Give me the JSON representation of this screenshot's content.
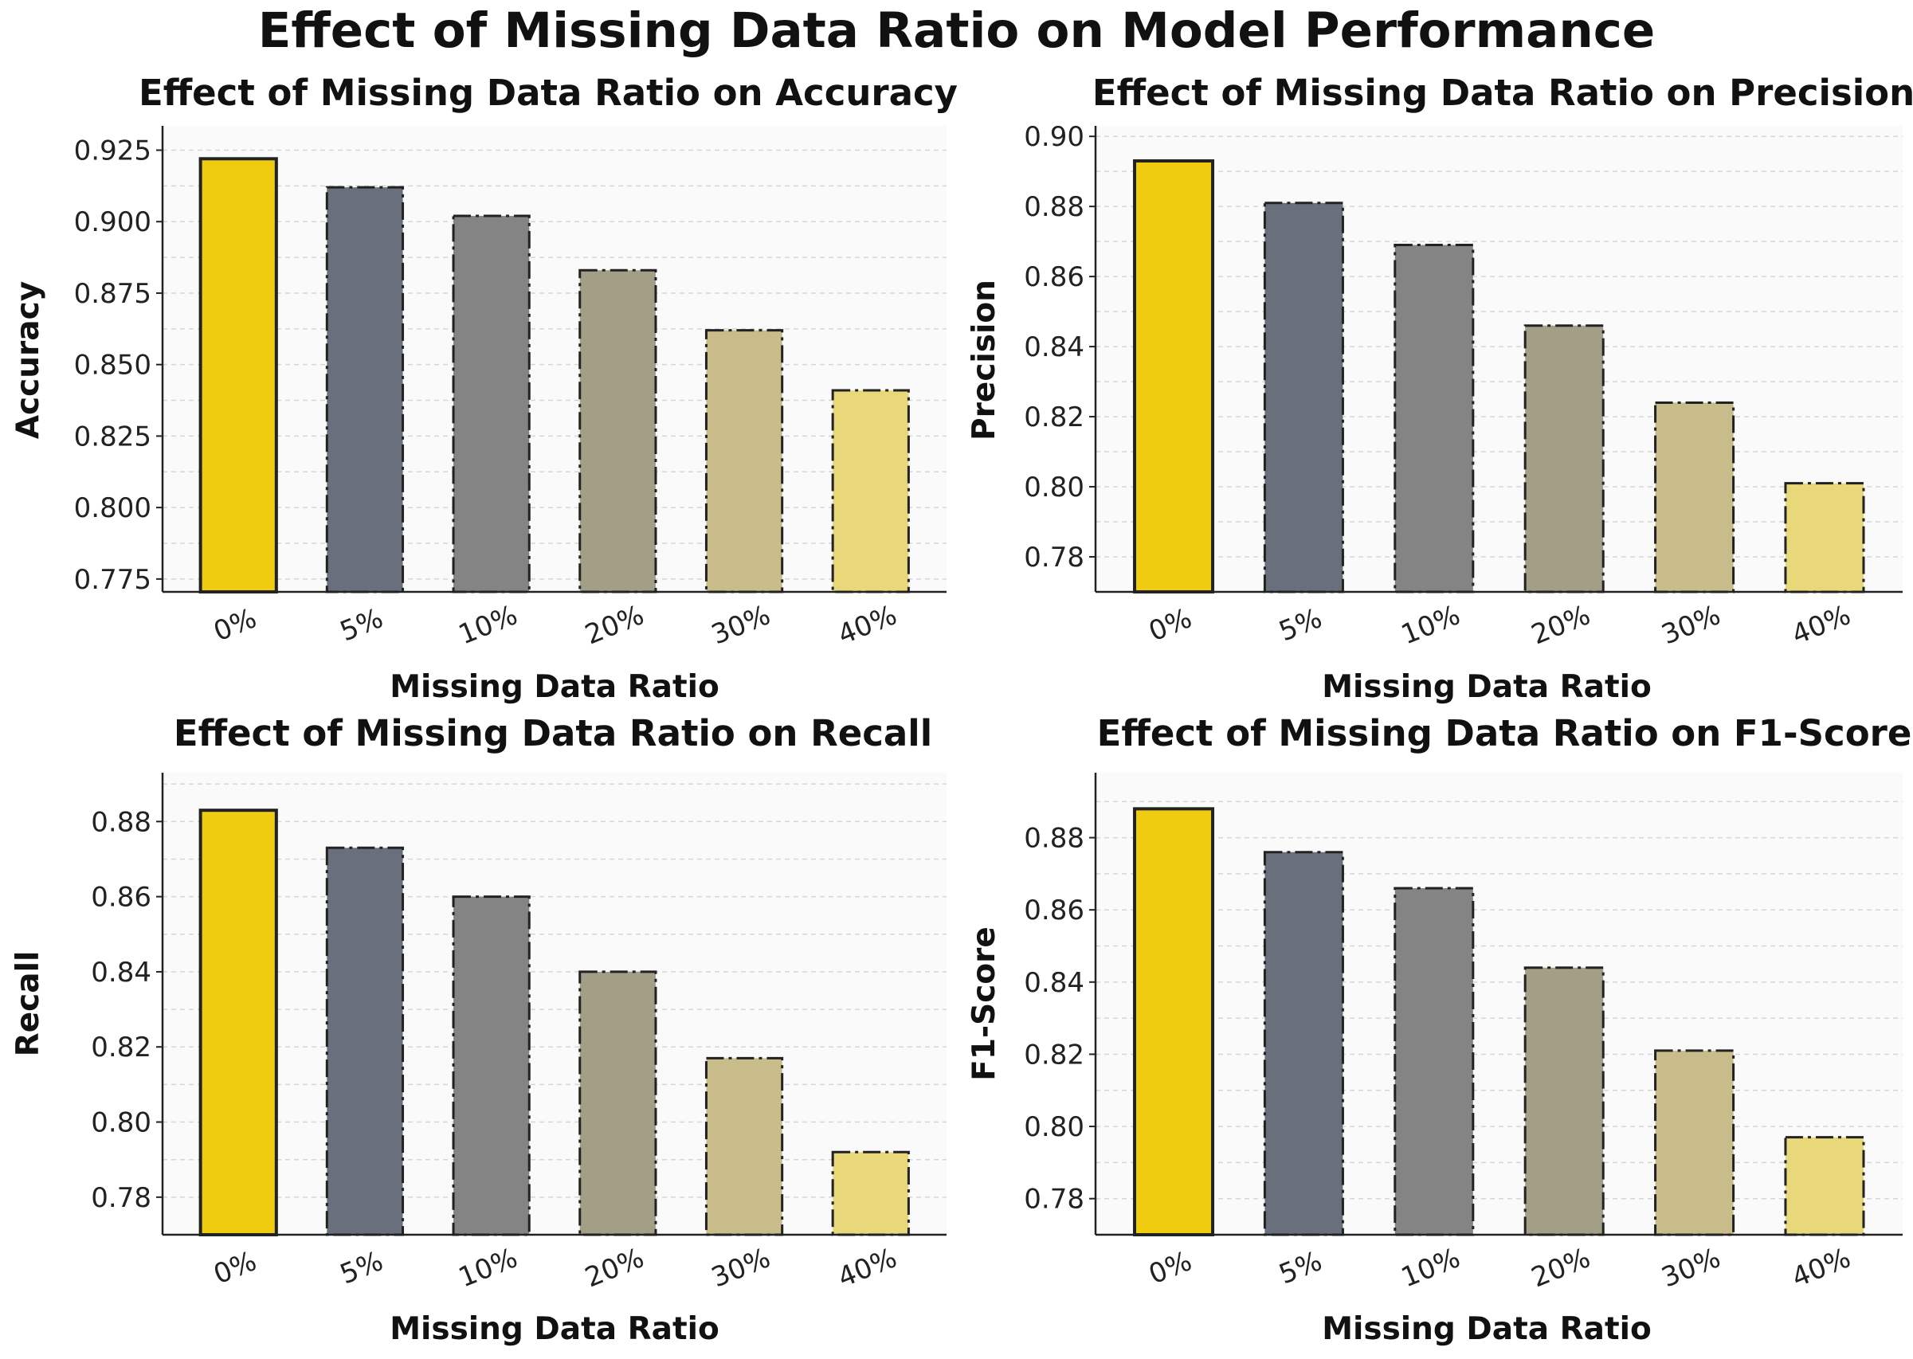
{
  "title": "Effect of Missing Data Ratio on Model Performance",
  "colors": {
    "bars": [
      "#f0cc10",
      "#6a6f7c",
      "#848484",
      "#a39f86",
      "#c8bc8a",
      "#e8d87a"
    ],
    "edge": "#222222",
    "plot_bg": "#fafafa",
    "grid": "#d6d6d6"
  },
  "chart_data": [
    {
      "type": "bar",
      "title": "Effect of Missing Data Ratio on Accuracy",
      "xlabel": "Missing Data Ratio",
      "ylabel": "Accuracy",
      "categories": [
        "0%",
        "5%",
        "10%",
        "20%",
        "30%",
        "40%"
      ],
      "values": [
        0.922,
        0.912,
        0.902,
        0.883,
        0.862,
        0.841
      ],
      "ylim": [
        0.7705,
        0.9335
      ],
      "yticks": [
        0.775,
        0.8,
        0.825,
        0.85,
        0.875,
        0.9,
        0.925
      ],
      "ytick_labels": [
        "0.775",
        "0.800",
        "0.825",
        "0.850",
        "0.875",
        "0.900",
        "0.925"
      ]
    },
    {
      "type": "bar",
      "title": "Effect of Missing Data Ratio on Precision",
      "xlabel": "Missing Data Ratio",
      "ylabel": "Precision",
      "categories": [
        "0%",
        "5%",
        "10%",
        "20%",
        "30%",
        "40%"
      ],
      "values": [
        0.893,
        0.881,
        0.869,
        0.846,
        0.824,
        0.801
      ],
      "ylim": [
        0.77,
        0.903
      ],
      "yticks": [
        0.78,
        0.8,
        0.82,
        0.84,
        0.86,
        0.88,
        0.9
      ],
      "ytick_labels": [
        "0.78",
        "0.80",
        "0.82",
        "0.84",
        "0.86",
        "0.88",
        "0.90"
      ]
    },
    {
      "type": "bar",
      "title": "Effect of Missing Data Ratio on Recall",
      "xlabel": "Missing Data Ratio",
      "ylabel": "Recall",
      "categories": [
        "0%",
        "5%",
        "10%",
        "20%",
        "30%",
        "40%"
      ],
      "values": [
        0.883,
        0.873,
        0.86,
        0.84,
        0.817,
        0.792
      ],
      "ylim": [
        0.77,
        0.893
      ],
      "yticks": [
        0.78,
        0.8,
        0.82,
        0.84,
        0.86,
        0.88
      ],
      "ytick_labels": [
        "0.78",
        "0.80",
        "0.82",
        "0.84",
        "0.86",
        "0.88"
      ]
    },
    {
      "type": "bar",
      "title": "Effect of Missing Data Ratio on F1-Score",
      "xlabel": "Missing Data Ratio",
      "ylabel": "F1-Score",
      "categories": [
        "0%",
        "5%",
        "10%",
        "20%",
        "30%",
        "40%"
      ],
      "values": [
        0.888,
        0.876,
        0.866,
        0.844,
        0.821,
        0.797
      ],
      "ylim": [
        0.77,
        0.898
      ],
      "yticks": [
        0.78,
        0.8,
        0.82,
        0.84,
        0.86,
        0.88
      ],
      "ytick_labels": [
        "0.78",
        "0.80",
        "0.82",
        "0.84",
        "0.86",
        "0.88"
      ]
    }
  ]
}
